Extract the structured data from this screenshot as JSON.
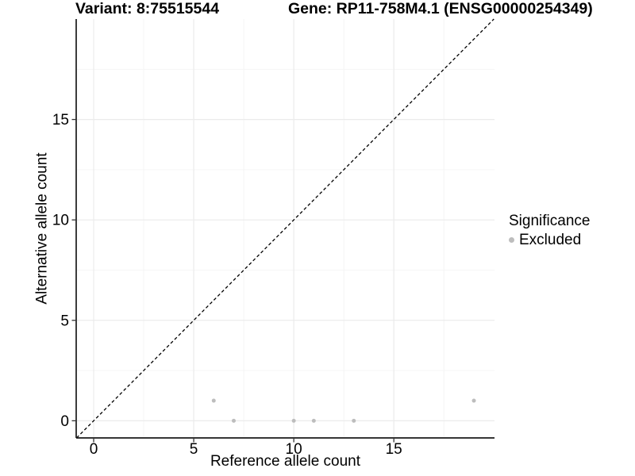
{
  "chart_data": {
    "type": "scatter",
    "title_left": "Variant: 8:75515544",
    "title_right": "Gene: RP11-758M4.1 (ENSG00000254349)",
    "xlabel": "Reference allele count",
    "ylabel": "Alternative allele count",
    "xlim": [
      -0.873,
      20.03
    ],
    "ylim": [
      -0.854,
      20.0
    ],
    "x_ticks": [
      0,
      5,
      10,
      15
    ],
    "y_ticks": [
      0,
      5,
      10,
      15
    ],
    "x_minor": [
      2.5,
      7.5,
      12.5,
      17.5
    ],
    "y_minor": [
      2.5,
      7.5,
      12.5,
      17.5
    ],
    "grid": true,
    "identity_line": {
      "slope": 1,
      "intercept": 0,
      "style": "dashed"
    },
    "series": [
      {
        "name": "Excluded",
        "color": "#bdbdbd",
        "points": [
          [
            6,
            1
          ],
          [
            7,
            0
          ],
          [
            10,
            0
          ],
          [
            11,
            0
          ],
          [
            13,
            0
          ],
          [
            19,
            1
          ]
        ]
      }
    ],
    "legend": {
      "title": "Significance",
      "position": "right",
      "items": [
        {
          "label": "Excluded",
          "color": "#bdbdbd"
        }
      ]
    }
  },
  "colors": {
    "background": "#ffffff",
    "point_excluded": "#bdbdbd",
    "grid_major": "#ebebeb",
    "grid_minor": "#f4f4f4",
    "axis_line": "#1a1a1a",
    "tick_mark": "#333333",
    "identity_line": "#000000",
    "text": "#000000"
  }
}
